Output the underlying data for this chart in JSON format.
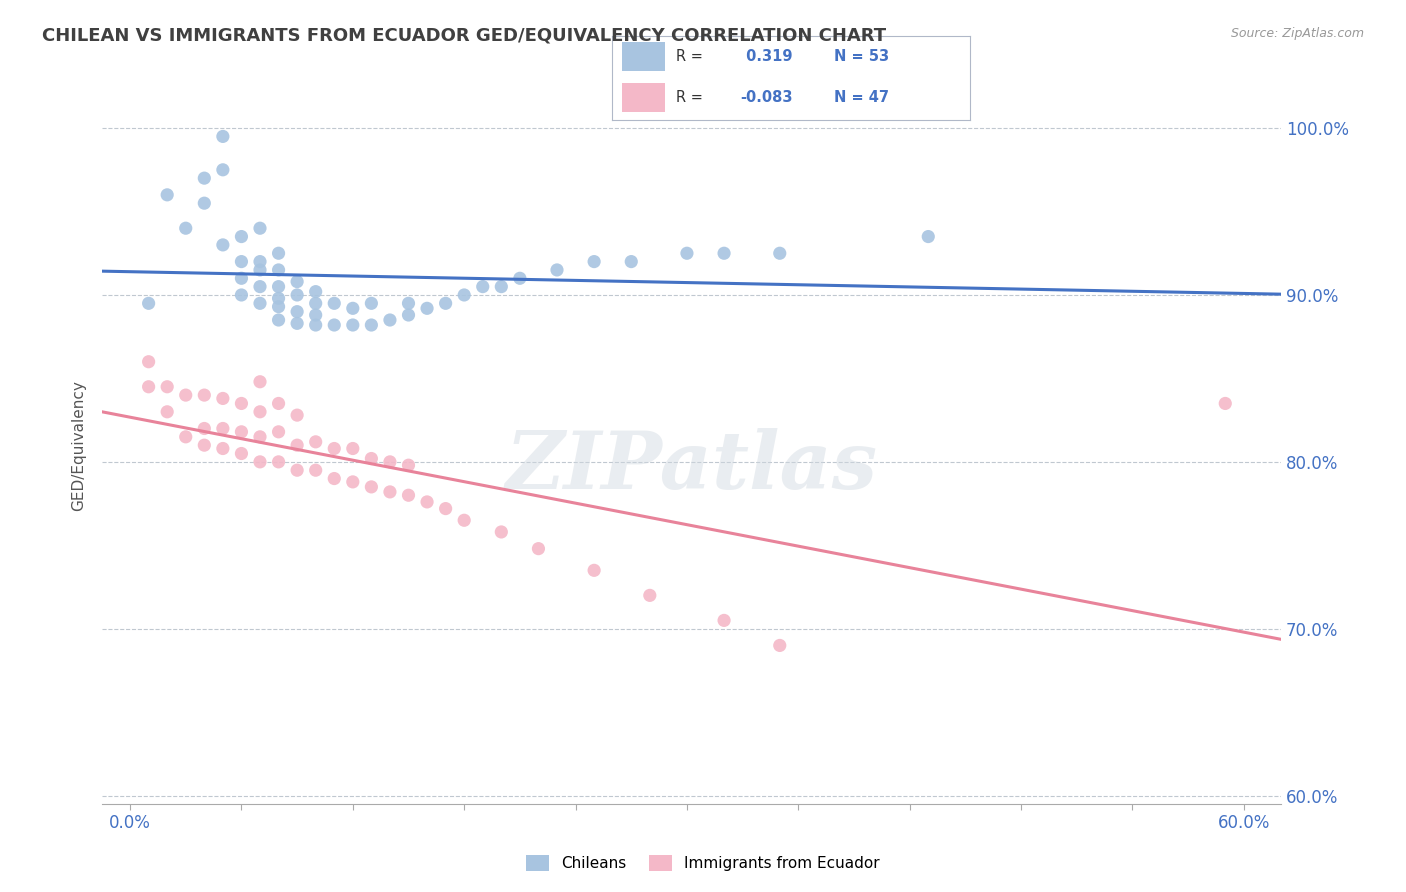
{
  "title": "CHILEAN VS IMMIGRANTS FROM ECUADOR GED/EQUIVALENCY CORRELATION CHART",
  "source": "Source: ZipAtlas.com",
  "ylabel_label": "GED/Equivalency",
  "legend_labels": [
    "Chileans",
    "Immigrants from Ecuador"
  ],
  "blue_R": 0.319,
  "blue_N": 53,
  "pink_R": -0.083,
  "pink_N": 47,
  "blue_color": "#a8c4e0",
  "pink_color": "#f4b8c8",
  "blue_line_color": "#4472c4",
  "pink_line_color": "#e8839a",
  "watermark": "ZIPatlas",
  "background_color": "#ffffff",
  "grid_color": "#c0c8d0",
  "title_color": "#404040",
  "axis_color": "#4472c4",
  "blue_scatter_x": [
    0.01,
    0.02,
    0.03,
    0.04,
    0.04,
    0.05,
    0.05,
    0.05,
    0.06,
    0.06,
    0.06,
    0.06,
    0.07,
    0.07,
    0.07,
    0.07,
    0.07,
    0.08,
    0.08,
    0.08,
    0.08,
    0.08,
    0.08,
    0.09,
    0.09,
    0.09,
    0.09,
    0.1,
    0.1,
    0.1,
    0.1,
    0.11,
    0.11,
    0.12,
    0.12,
    0.13,
    0.13,
    0.14,
    0.15,
    0.15,
    0.16,
    0.17,
    0.18,
    0.19,
    0.2,
    0.21,
    0.23,
    0.25,
    0.27,
    0.3,
    0.32,
    0.35,
    0.43
  ],
  "blue_scatter_y": [
    0.895,
    0.96,
    0.94,
    0.955,
    0.97,
    0.975,
    0.995,
    0.93,
    0.9,
    0.91,
    0.92,
    0.935,
    0.895,
    0.905,
    0.915,
    0.92,
    0.94,
    0.885,
    0.893,
    0.898,
    0.905,
    0.915,
    0.925,
    0.883,
    0.89,
    0.9,
    0.908,
    0.882,
    0.888,
    0.895,
    0.902,
    0.882,
    0.895,
    0.882,
    0.892,
    0.882,
    0.895,
    0.885,
    0.888,
    0.895,
    0.892,
    0.895,
    0.9,
    0.905,
    0.905,
    0.91,
    0.915,
    0.92,
    0.92,
    0.925,
    0.925,
    0.925,
    0.935
  ],
  "pink_scatter_x": [
    0.01,
    0.01,
    0.02,
    0.02,
    0.03,
    0.03,
    0.04,
    0.04,
    0.04,
    0.05,
    0.05,
    0.05,
    0.06,
    0.06,
    0.06,
    0.07,
    0.07,
    0.07,
    0.07,
    0.08,
    0.08,
    0.08,
    0.09,
    0.09,
    0.09,
    0.1,
    0.1,
    0.11,
    0.11,
    0.12,
    0.12,
    0.13,
    0.13,
    0.14,
    0.14,
    0.15,
    0.15,
    0.16,
    0.17,
    0.18,
    0.2,
    0.22,
    0.25,
    0.28,
    0.32,
    0.35,
    0.59
  ],
  "pink_scatter_y": [
    0.845,
    0.86,
    0.83,
    0.845,
    0.815,
    0.84,
    0.81,
    0.82,
    0.84,
    0.808,
    0.82,
    0.838,
    0.805,
    0.818,
    0.835,
    0.8,
    0.815,
    0.83,
    0.848,
    0.8,
    0.818,
    0.835,
    0.795,
    0.81,
    0.828,
    0.795,
    0.812,
    0.79,
    0.808,
    0.788,
    0.808,
    0.785,
    0.802,
    0.782,
    0.8,
    0.78,
    0.798,
    0.776,
    0.772,
    0.765,
    0.758,
    0.748,
    0.735,
    0.72,
    0.705,
    0.69,
    0.835
  ],
  "xlim": [
    -0.015,
    0.62
  ],
  "ylim": [
    0.595,
    1.025
  ]
}
